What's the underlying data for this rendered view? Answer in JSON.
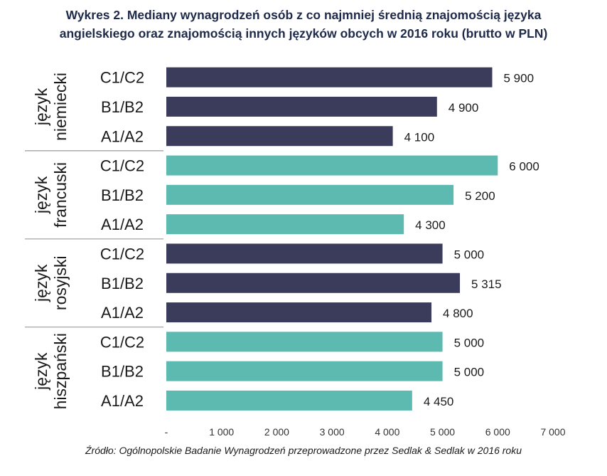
{
  "title_line1": "Wykres 2. Mediany wynagrodzeń osób z co najmniej średnią znajomością języka",
  "title_line2": "angielskiego oraz znajomością innych języków obcych w 2016 roku (brutto w PLN)",
  "source": "Źródło: Ogólnopolskie Badanie Wynagrodzeń przeprowadzone przez Sedlak & Sedlak w 2016 roku",
  "colors": {
    "dark": "#3b3c5c",
    "teal": "#5cbab0",
    "separator": "#9a9a9a"
  },
  "chart_data": {
    "type": "bar",
    "orientation": "horizontal",
    "title": "Wykres 2. Mediany wynagrodzeń osób z co najmniej średnią znajomością języka angielskiego oraz znajomością innych języków obcych w 2016 roku (brutto w PLN)",
    "xlim": [
      0,
      7000
    ],
    "xticks": [
      0,
      1000,
      2000,
      3000,
      4000,
      5000,
      6000,
      7000
    ],
    "xtick_labels": [
      "-",
      "1 000",
      "2 000",
      "3 000",
      "4 000",
      "5 000",
      "6 000",
      "7 000"
    ],
    "grid": false,
    "groups": [
      {
        "label_line1": "język",
        "label_line2": "niemiecki",
        "color": "dark",
        "bars": [
          {
            "category": "C1/C2",
            "value": 5900,
            "label": "5 900"
          },
          {
            "category": "B1/B2",
            "value": 4900,
            "label": "4 900"
          },
          {
            "category": "A1/A2",
            "value": 4100,
            "label": "4 100"
          }
        ]
      },
      {
        "label_line1": "język",
        "label_line2": "francuski",
        "color": "teal",
        "bars": [
          {
            "category": "C1/C2",
            "value": 6000,
            "label": "6 000"
          },
          {
            "category": "B1/B2",
            "value": 5200,
            "label": "5 200"
          },
          {
            "category": "A1/A2",
            "value": 4300,
            "label": "4 300"
          }
        ]
      },
      {
        "label_line1": "język",
        "label_line2": "rosyjski",
        "color": "dark",
        "bars": [
          {
            "category": "C1/C2",
            "value": 5000,
            "label": "5 000"
          },
          {
            "category": "B1/B2",
            "value": 5315,
            "label": "5 315"
          },
          {
            "category": "A1/A2",
            "value": 4800,
            "label": "4 800"
          }
        ]
      },
      {
        "label_line1": "język",
        "label_line2": "hiszpański",
        "color": "teal",
        "bars": [
          {
            "category": "C1/C2",
            "value": 5000,
            "label": "5 000"
          },
          {
            "category": "B1/B2",
            "value": 5000,
            "label": "5 000"
          },
          {
            "category": "A1/A2",
            "value": 4450,
            "label": "4 450"
          }
        ]
      }
    ]
  }
}
